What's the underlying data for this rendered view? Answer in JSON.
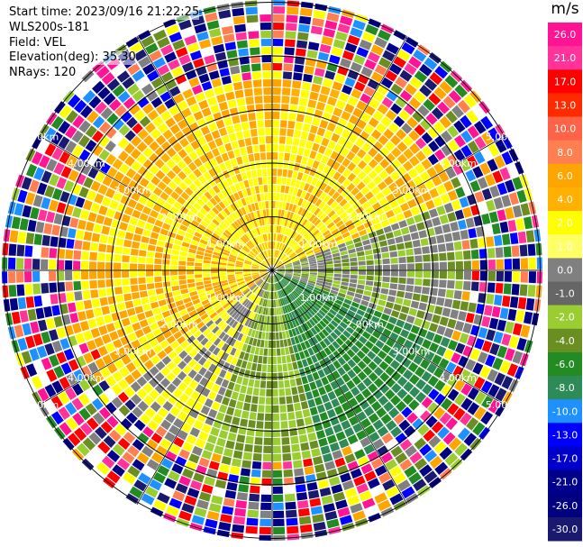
{
  "header": {
    "start_time": "Start time: 2023/09/16 21:22:25",
    "instrument": "WLS200s-181",
    "field": "Field: VEL",
    "elevation": "Elevation(deg): 35.30",
    "nrays": "NRays: 120"
  },
  "range_rings": [
    {
      "label": "1.00km",
      "km": 1
    },
    {
      "label": "2.00km",
      "km": 2
    },
    {
      "label": "3.00km",
      "km": 3
    },
    {
      "label": "4.00km",
      "km": 4
    },
    {
      "label": "5.00km",
      "km": 5
    }
  ],
  "colorbar": {
    "unit": "m/s",
    "ticks": [
      "26.0",
      "21.0",
      "17.0",
      "13.0",
      "10.0",
      "8.0",
      "6.0",
      "4.0",
      "2.0",
      "1.0",
      "0.0",
      "-1.0",
      "-2.0",
      "-4.0",
      "-6.0",
      "-8.0",
      "-10.0",
      "-13.0",
      "-17.0",
      "-21.0",
      "-26.0",
      "-30.0"
    ],
    "colors": [
      "#ff1493",
      "#ff3399",
      "#ff0000",
      "#ff2a00",
      "#ff6347",
      "#ff7f50",
      "#ffa500",
      "#ffb000",
      "#ffff00",
      "#ffff66",
      "#808080",
      "#666666",
      "#9acd32",
      "#6b8e23",
      "#228b22",
      "#2e8b57",
      "#1e90ff",
      "#0000ff",
      "#0000cd",
      "#00008b",
      "#000080",
      "#191970"
    ]
  }
}
